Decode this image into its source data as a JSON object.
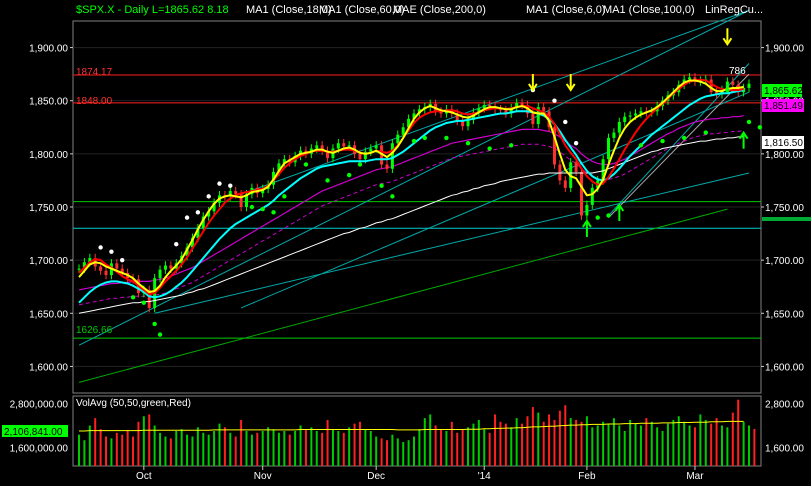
{
  "header": {
    "symbol": "$SPX.X",
    "period": "Daily",
    "last": "L=1865.62",
    "change": "8.18",
    "indicators": [
      "MA1 (Close,18,0)",
      "MA1 (Close,60,0)",
      "MAE (Close,200,0)",
      "MA1 (Close,6,0)",
      "MA1 (Close,100,0)",
      "LinRegCu..."
    ]
  },
  "colors": {
    "background": "#000000",
    "price_line": "#ff2020",
    "ma18": "#ff0000",
    "ma6": "#ffff00",
    "ma_cyan": "#00ffff",
    "ma200": "#ffffff",
    "mae": "#cc00cc",
    "upper_channel": "#00cccc",
    "guide_green": "#00cc00",
    "vol_bar_up": "#00cc00",
    "vol_bar_down": "#ff2020",
    "vol_avg": "#ffff00"
  },
  "price_labels": {
    "current": "1,865.62",
    "ma_magenta": "1,851.49",
    "ma_white": "1,816.50",
    "level_top": "1874.17",
    "level_mid": "1848.00",
    "level_bottom": "1626.66",
    "annotation": "786"
  },
  "chart_data": {
    "type": "line",
    "title": "",
    "price_axis": {
      "ylim": [
        1575,
        1925
      ],
      "ticks": [
        1600,
        1650,
        1700,
        1750,
        1800,
        1850,
        1900
      ],
      "tick_labels": [
        "1,600.00",
        "1,650.00",
        "1,700.00",
        "1,750.00",
        "1,800.00",
        "1,850.00",
        "1,900.00"
      ],
      "right_tick_labels": [
        "1,600.00",
        "1,650.00",
        "1,700.00",
        "1,750.00",
        "1,800.00",
        "1,850.00",
        "1,900.00"
      ]
    },
    "x_axis": {
      "labels": [
        "Oct",
        "Nov",
        "Dec",
        "'14",
        "Feb",
        "Mar"
      ],
      "label_index": [
        12,
        34,
        55,
        75,
        94,
        114
      ]
    },
    "horizontal_levels": [
      {
        "label": "1874.17",
        "value": 1874.17,
        "color": "#ff2020"
      },
      {
        "label": "1848.00",
        "value": 1848.0,
        "color": "#ff2020"
      },
      {
        "label": "",
        "value": 1755.0,
        "color": "#00cc00"
      },
      {
        "label": "",
        "value": 1730.0,
        "color": "#00cccc"
      },
      {
        "label": "1626.66",
        "value": 1626.66,
        "color": "#00cc00"
      }
    ],
    "close": [
      1692,
      1698,
      1702,
      1694,
      1690,
      1686,
      1697,
      1692,
      1688,
      1683,
      1682,
      1669,
      1672,
      1655,
      1683,
      1691,
      1695,
      1692,
      1697,
      1704,
      1712,
      1721,
      1730,
      1741,
      1746,
      1754,
      1761,
      1760,
      1765,
      1762,
      1750,
      1762,
      1768,
      1763,
      1767,
      1771,
      1783,
      1791,
      1795,
      1792,
      1798,
      1803,
      1800,
      1805,
      1808,
      1803,
      1796,
      1805,
      1810,
      1807,
      1808,
      1800,
      1795,
      1802,
      1805,
      1808,
      1790,
      1786,
      1810,
      1818,
      1825,
      1833,
      1838,
      1842,
      1844,
      1847,
      1840,
      1838,
      1842,
      1838,
      1831,
      1826,
      1832,
      1839,
      1843,
      1846,
      1845,
      1842,
      1841,
      1838,
      1843,
      1848,
      1846,
      1838,
      1828,
      1844,
      1840,
      1825,
      1790,
      1775,
      1768,
      1792,
      1783,
      1742,
      1752,
      1768,
      1775,
      1795,
      1815,
      1820,
      1830,
      1835,
      1836,
      1838,
      1840,
      1839,
      1840,
      1845,
      1850,
      1855,
      1858,
      1865,
      1870,
      1872,
      1868,
      1869,
      1870,
      1858,
      1856,
      1860,
      1868,
      1865,
      1858,
      1862,
      1866
    ],
    "ma18": [
      1688,
      1693,
      1698,
      1701,
      1700,
      1696,
      1693,
      1689,
      1685,
      1682,
      1680,
      1676,
      1672,
      1668,
      1669,
      1674,
      1680,
      1685,
      1690,
      1696,
      1703,
      1711,
      1719,
      1727,
      1735,
      1742,
      1748,
      1754,
      1758,
      1761,
      1763,
      1764,
      1765,
      1766,
      1767,
      1770,
      1775,
      1781,
      1787,
      1791,
      1795,
      1798,
      1800,
      1802,
      1803,
      1803,
      1802,
      1802,
      1803,
      1804,
      1804,
      1803,
      1801,
      1800,
      1801,
      1803,
      1802,
      1801,
      1803,
      1808,
      1815,
      1822,
      1829,
      1834,
      1837,
      1839,
      1840,
      1840,
      1841,
      1841,
      1840,
      1838,
      1837,
      1838,
      1839,
      1841,
      1842,
      1843,
      1843,
      1842,
      1843,
      1844,
      1845,
      1845,
      1843,
      1841,
      1839,
      1835,
      1828,
      1818,
      1808,
      1801,
      1795,
      1786,
      1779,
      1774,
      1771,
      1772,
      1778,
      1786,
      1795,
      1804,
      1812,
      1820,
      1827,
      1833,
      1838,
      1843,
      1847,
      1852,
      1857,
      1861,
      1865,
      1868,
      1869,
      1870,
      1869,
      1866,
      1863,
      1861,
      1860,
      1860,
      1860,
      1861
    ],
    "ma6": [
      1684,
      1690,
      1696,
      1698,
      1697,
      1694,
      1692,
      1690,
      1688,
      1686,
      1683,
      1678,
      1674,
      1670,
      1671,
      1676,
      1684,
      1690,
      1695,
      1701,
      1710,
      1719,
      1729,
      1738,
      1746,
      1753,
      1758,
      1760,
      1761,
      1760,
      1759,
      1761,
      1764,
      1765,
      1766,
      1769,
      1776,
      1784,
      1791,
      1794,
      1797,
      1800,
      1801,
      1802,
      1804,
      1804,
      1802,
      1801,
      1803,
      1805,
      1806,
      1804,
      1801,
      1800,
      1801,
      1803,
      1800,
      1797,
      1801,
      1807,
      1815,
      1824,
      1833,
      1839,
      1843,
      1845,
      1843,
      1841,
      1840,
      1839,
      1837,
      1835,
      1834,
      1836,
      1839,
      1842,
      1844,
      1844,
      1843,
      1842,
      1842,
      1844,
      1845,
      1843,
      1839,
      1838,
      1838,
      1831,
      1816,
      1800,
      1785,
      1779,
      1777,
      1769,
      1761,
      1762,
      1767,
      1776,
      1790,
      1803,
      1815,
      1824,
      1830,
      1834,
      1837,
      1839,
      1841,
      1844,
      1848,
      1853,
      1858,
      1863,
      1867,
      1869,
      1869,
      1868,
      1866,
      1862,
      1859,
      1859,
      1861,
      1862,
      1862,
      1863
    ],
    "ma_cyan": [
      1660,
      1665,
      1670,
      1674,
      1677,
      1679,
      1680,
      1680,
      1679,
      1678,
      1676,
      1673,
      1670,
      1666,
      1665,
      1666,
      1668,
      1671,
      1675,
      1679,
      1684,
      1690,
      1696,
      1702,
      1708,
      1714,
      1720,
      1725,
      1730,
      1734,
      1737,
      1740,
      1743,
      1746,
      1749,
      1752,
      1756,
      1761,
      1765,
      1769,
      1773,
      1777,
      1780,
      1783,
      1786,
      1788,
      1789,
      1790,
      1791,
      1792,
      1793,
      1793,
      1793,
      1793,
      1794,
      1795,
      1795,
      1795,
      1796,
      1799,
      1802,
      1806,
      1810,
      1814,
      1818,
      1822,
      1825,
      1827,
      1829,
      1830,
      1831,
      1831,
      1832,
      1833,
      1834,
      1835,
      1836,
      1837,
      1838,
      1838,
      1839,
      1840,
      1840,
      1840,
      1839,
      1838,
      1836,
      1833,
      1828,
      1821,
      1813,
      1806,
      1799,
      1791,
      1784,
      1779,
      1776,
      1775,
      1777,
      1781,
      1786,
      1792,
      1798,
      1803,
      1808,
      1813,
      1818,
      1822,
      1826,
      1830,
      1834,
      1838,
      1842,
      1846,
      1849,
      1852,
      1854,
      1855,
      1856,
      1857,
      1857,
      1858,
      1859,
      1860
    ],
    "mae": [
      1672,
      1673,
      1674,
      1675,
      1676,
      1677,
      1678,
      1678,
      1679,
      1679,
      1680,
      1680,
      1680,
      1680,
      1681,
      1682,
      1683,
      1685,
      1687,
      1689,
      1691,
      1693,
      1696,
      1699,
      1702,
      1705,
      1708,
      1711,
      1714,
      1717,
      1720,
      1723,
      1726,
      1729,
      1732,
      1735,
      1738,
      1741,
      1744,
      1747,
      1750,
      1753,
      1756,
      1759,
      1762,
      1765,
      1767,
      1769,
      1771,
      1773,
      1775,
      1777,
      1779,
      1781,
      1783,
      1785,
      1786,
      1787,
      1788,
      1790,
      1792,
      1794,
      1796,
      1798,
      1800,
      1802,
      1804,
      1806,
      1808,
      1810,
      1811,
      1812,
      1813,
      1814,
      1815,
      1816,
      1817,
      1818,
      1819,
      1820,
      1821,
      1822,
      1823,
      1823,
      1823,
      1823,
      1822,
      1821,
      1819,
      1816,
      1812,
      1808,
      1805,
      1800,
      1796,
      1793,
      1791,
      1790,
      1790,
      1791,
      1793,
      1795,
      1798,
      1801,
      1804,
      1807,
      1810,
      1813,
      1816,
      1819,
      1821,
      1824,
      1826,
      1828,
      1830,
      1831,
      1832,
      1833,
      1833,
      1834,
      1834,
      1835,
      1835,
      1836
    ],
    "ma200": [
      1650,
      1651,
      1652,
      1653,
      1654,
      1655,
      1656,
      1657,
      1658,
      1659,
      1660,
      1660,
      1661,
      1661,
      1662,
      1663,
      1664,
      1665,
      1666,
      1667,
      1669,
      1670,
      1672,
      1673,
      1675,
      1677,
      1679,
      1681,
      1683,
      1685,
      1687,
      1689,
      1691,
      1693,
      1695,
      1697,
      1699,
      1701,
      1703,
      1705,
      1707,
      1709,
      1711,
      1713,
      1715,
      1717,
      1719,
      1721,
      1723,
      1725,
      1726,
      1728,
      1730,
      1731,
      1733,
      1735,
      1736,
      1738,
      1739,
      1741,
      1743,
      1745,
      1747,
      1749,
      1751,
      1753,
      1755,
      1757,
      1759,
      1761,
      1762,
      1764,
      1765,
      1767,
      1768,
      1770,
      1771,
      1772,
      1774,
      1775,
      1776,
      1777,
      1778,
      1779,
      1780,
      1781,
      1781,
      1782,
      1782,
      1782,
      1782,
      1782,
      1782,
      1782,
      1782,
      1782,
      1783,
      1784,
      1786,
      1788,
      1790,
      1792,
      1794,
      1796,
      1798,
      1800,
      1802,
      1803,
      1805,
      1806,
      1807,
      1808,
      1809,
      1810,
      1811,
      1812,
      1812,
      1813,
      1814,
      1814,
      1815,
      1815,
      1816,
      1816
    ],
    "sar_dots": [
      [
        4,
        1712
      ],
      [
        6,
        1708
      ],
      [
        8,
        1700
      ],
      [
        10,
        1665
      ],
      [
        12,
        1660
      ],
      [
        14,
        1640
      ],
      [
        15,
        1630
      ],
      [
        18,
        1715
      ],
      [
        20,
        1740
      ],
      [
        22,
        1745
      ],
      [
        24,
        1760
      ],
      [
        26,
        1772
      ],
      [
        28,
        1770
      ],
      [
        32,
        1750
      ],
      [
        34,
        1748
      ],
      [
        36,
        1745
      ],
      [
        38,
        1760
      ],
      [
        42,
        1790
      ],
      [
        46,
        1775
      ],
      [
        50,
        1780
      ],
      [
        52,
        1790
      ],
      [
        56,
        1770
      ],
      [
        58,
        1760
      ],
      [
        62,
        1812
      ],
      [
        64,
        1815
      ],
      [
        68,
        1815
      ],
      [
        72,
        1810
      ],
      [
        76,
        1805
      ],
      [
        80,
        1808
      ],
      [
        84,
        1860
      ],
      [
        88,
        1850
      ],
      [
        90,
        1830
      ],
      [
        92,
        1810
      ],
      [
        96,
        1740
      ],
      [
        98,
        1742
      ],
      [
        104,
        1808
      ],
      [
        108,
        1812
      ],
      [
        112,
        1815
      ],
      [
        116,
        1820
      ],
      [
        120,
        1860
      ],
      [
        124,
        1830
      ],
      [
        126,
        1825
      ]
    ],
    "volume": {
      "ylim": [
        1100000,
        3000000
      ],
      "ticks": [
        1600000,
        2800000
      ],
      "tick_labels": [
        "1,600,000.00",
        "2,800,000.00"
      ],
      "right_tick_labels": [
        "1,600.00",
        "2,800.00"
      ],
      "current_label": "2,106,841.00",
      "avg_label": "VolAvg (50,50,green,Red)",
      "values": [
        1950000,
        1800000,
        2200000,
        2400000,
        2100000,
        1900000,
        1850000,
        2000000,
        1950000,
        2050000,
        1900000,
        2300000,
        2450000,
        2500000,
        2200000,
        2000000,
        1900000,
        1850000,
        2050000,
        2100000,
        1950000,
        1900000,
        2150000,
        2000000,
        1950000,
        2050000,
        2250000,
        2150000,
        2000000,
        1900000,
        2350000,
        2050000,
        1950000,
        2000000,
        2050000,
        2150000,
        2100000,
        2000000,
        2050000,
        1950000,
        2050000,
        2200000,
        2100000,
        2150000,
        2050000,
        2000000,
        2350000,
        2100000,
        2050000,
        2000000,
        2150000,
        2250000,
        2300000,
        2100000,
        2050000,
        1900000,
        1850000,
        1800000,
        1950000,
        1850000,
        1750000,
        1800000,
        1900000,
        2100000,
        2400000,
        2500000,
        2200000,
        2100000,
        2050000,
        2300000,
        2000000,
        2100000,
        2150000,
        2250000,
        2350000,
        2100000,
        2000000,
        2500000,
        2300000,
        2250000,
        2150000,
        2400000,
        2250000,
        2450000,
        2700000,
        2550000,
        2300000,
        2500000,
        2350000,
        2600000,
        2750000,
        2400000,
        2350000,
        2300000,
        2450000,
        2150000,
        2200000,
        2300000,
        2250000,
        2400000,
        2200000,
        2050000,
        2350000,
        2250000,
        2200000,
        2400000,
        2300000,
        2150000,
        2050000,
        2250000,
        2350000,
        2450000,
        2300000,
        2200000,
        2150000,
        2500000,
        2350000,
        2250000,
        2400000,
        2200000,
        2150000,
        2550000,
        2900000,
        2300000,
        2200000,
        2106841
      ],
      "avg": [
        2050000,
        2050000,
        2060000,
        2060000,
        2060000,
        2060000,
        2060000,
        2060000,
        2060000,
        2060000,
        2060000,
        2060000,
        2070000,
        2070000,
        2070000,
        2070000,
        2070000,
        2070000,
        2070000,
        2070000,
        2070000,
        2070000,
        2070000,
        2070000,
        2070000,
        2080000,
        2080000,
        2080000,
        2080000,
        2080000,
        2080000,
        2080000,
        2080000,
        2080000,
        2080000,
        2080000,
        2080000,
        2080000,
        2080000,
        2080000,
        2080000,
        2090000,
        2090000,
        2090000,
        2090000,
        2090000,
        2090000,
        2090000,
        2090000,
        2090000,
        2090000,
        2090000,
        2090000,
        2090000,
        2090000,
        2090000,
        2090000,
        2090000,
        2090000,
        2080000,
        2080000,
        2080000,
        2080000,
        2080000,
        2090000,
        2090000,
        2090000,
        2090000,
        2090000,
        2090000,
        2090000,
        2090000,
        2100000,
        2100000,
        2100000,
        2110000,
        2110000,
        2120000,
        2120000,
        2130000,
        2130000,
        2140000,
        2140000,
        2150000,
        2160000,
        2160000,
        2170000,
        2180000,
        2180000,
        2190000,
        2200000,
        2210000,
        2210000,
        2220000,
        2220000,
        2230000,
        2230000,
        2230000,
        2240000,
        2240000,
        2240000,
        2250000,
        2250000,
        2250000,
        2260000,
        2260000,
        2260000,
        2260000,
        2270000,
        2270000,
        2270000,
        2280000,
        2280000,
        2280000,
        2290000,
        2290000,
        2290000,
        2300000,
        2300000,
        2300000,
        2310000,
        2310000,
        2310000,
        2310000
      ]
    }
  }
}
